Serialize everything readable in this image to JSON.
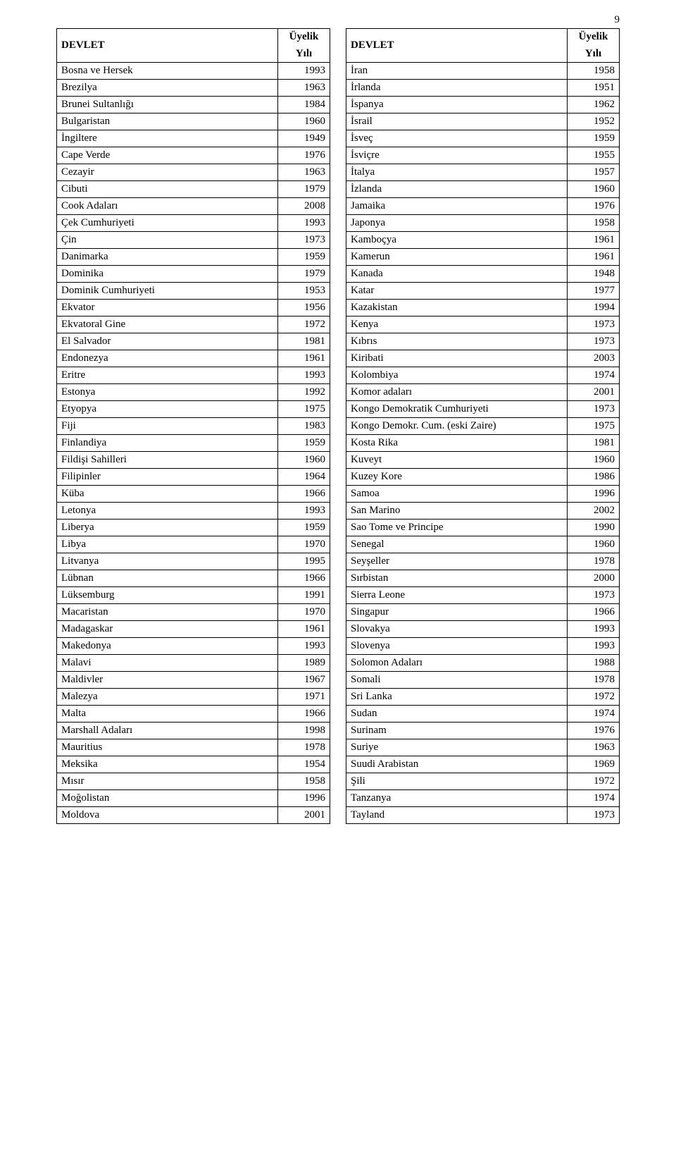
{
  "page_number": "9",
  "headers": {
    "state": "DEVLET",
    "year_top": "Üyelik",
    "year_bottom": "Yılı"
  },
  "left": [
    [
      "Bosna ve Hersek",
      "1993"
    ],
    [
      "Brezilya",
      "1963"
    ],
    [
      "Brunei Sultanlığı",
      "1984"
    ],
    [
      "Bulgaristan",
      "1960"
    ],
    [
      "İngiltere",
      "1949"
    ],
    [
      "Cape Verde",
      "1976"
    ],
    [
      "Cezayir",
      "1963"
    ],
    [
      "Cibuti",
      "1979"
    ],
    [
      "Cook Adaları",
      "2008"
    ],
    [
      "Çek Cumhuriyeti",
      "1993"
    ],
    [
      "Çin",
      "1973"
    ],
    [
      "Danimarka",
      "1959"
    ],
    [
      "Dominika",
      "1979"
    ],
    [
      "Dominik Cumhuriyeti",
      "1953"
    ],
    [
      "Ekvator",
      "1956"
    ],
    [
      "Ekvatoral Gine",
      "1972"
    ],
    [
      "El Salvador",
      "1981"
    ],
    [
      "Endonezya",
      "1961"
    ],
    [
      "Eritre",
      "1993"
    ],
    [
      "Estonya",
      "1992"
    ],
    [
      "Etyopya",
      "1975"
    ],
    [
      "Fiji",
      "1983"
    ],
    [
      "Finlandiya",
      "1959"
    ],
    [
      "Fildişi Sahilleri",
      "1960"
    ],
    [
      "Filipinler",
      "1964"
    ],
    [
      "Küba",
      "1966"
    ],
    [
      "Letonya",
      "1993"
    ],
    [
      "Liberya",
      "1959"
    ],
    [
      "Libya",
      "1970"
    ],
    [
      "Litvanya",
      "1995"
    ],
    [
      "Lübnan",
      "1966"
    ],
    [
      "Lüksemburg",
      "1991"
    ],
    [
      "Macaristan",
      "1970"
    ],
    [
      "Madagaskar",
      "1961"
    ],
    [
      "Makedonya",
      "1993"
    ],
    [
      "Malavi",
      "1989"
    ],
    [
      "Maldivler",
      "1967"
    ],
    [
      "Malezya",
      "1971"
    ],
    [
      "Malta",
      "1966"
    ],
    [
      "Marshall Adaları",
      "1998"
    ],
    [
      "Mauritius",
      "1978"
    ],
    [
      "Meksika",
      "1954"
    ],
    [
      "Mısır",
      "1958"
    ],
    [
      "Moğolistan",
      "1996"
    ],
    [
      "Moldova",
      "2001"
    ]
  ],
  "right": [
    [
      "İran",
      "1958"
    ],
    [
      "İrlanda",
      "1951"
    ],
    [
      "İspanya",
      "1962"
    ],
    [
      "İsrail",
      "1952"
    ],
    [
      "İsveç",
      "1959"
    ],
    [
      "İsviçre",
      "1955"
    ],
    [
      "İtalya",
      "1957"
    ],
    [
      "İzlanda",
      "1960"
    ],
    [
      "Jamaika",
      "1976"
    ],
    [
      "Japonya",
      "1958"
    ],
    [
      "Kamboçya",
      "1961"
    ],
    [
      "Kamerun",
      "1961"
    ],
    [
      "Kanada",
      "1948"
    ],
    [
      "Katar",
      "1977"
    ],
    [
      "Kazakistan",
      "1994"
    ],
    [
      "Kenya",
      "1973"
    ],
    [
      "Kıbrıs",
      "1973"
    ],
    [
      "Kiribati",
      "2003"
    ],
    [
      "Kolombiya",
      "1974"
    ],
    [
      "Komor adaları",
      "2001"
    ],
    [
      "Kongo Demokratik Cumhuriyeti",
      "1973"
    ],
    [
      "Kongo Demokr. Cum. (eski Zaire)",
      "1975"
    ],
    [
      "Kosta Rika",
      "1981"
    ],
    [
      "Kuveyt",
      "1960"
    ],
    [
      "Kuzey Kore",
      "1986"
    ],
    [
      "Samoa",
      "1996"
    ],
    [
      "San Marino",
      "2002"
    ],
    [
      "Sao Tome ve Principe",
      "1990"
    ],
    [
      "Senegal",
      "1960"
    ],
    [
      "Seyşeller",
      "1978"
    ],
    [
      "Sırbistan",
      "2000"
    ],
    [
      "Sierra Leone",
      "1973"
    ],
    [
      "Singapur",
      "1966"
    ],
    [
      "Slovakya",
      "1993"
    ],
    [
      "Slovenya",
      "1993"
    ],
    [
      "Solomon Adaları",
      "1988"
    ],
    [
      "Somali",
      "1978"
    ],
    [
      "Sri Lanka",
      "1972"
    ],
    [
      "Sudan",
      "1974"
    ],
    [
      "Surinam",
      "1976"
    ],
    [
      "Suriye",
      "1963"
    ],
    [
      "Suudi Arabistan",
      "1969"
    ],
    [
      "Şili",
      "1972"
    ],
    [
      "Tanzanya",
      "1974"
    ],
    [
      "Tayland",
      "1973"
    ]
  ]
}
